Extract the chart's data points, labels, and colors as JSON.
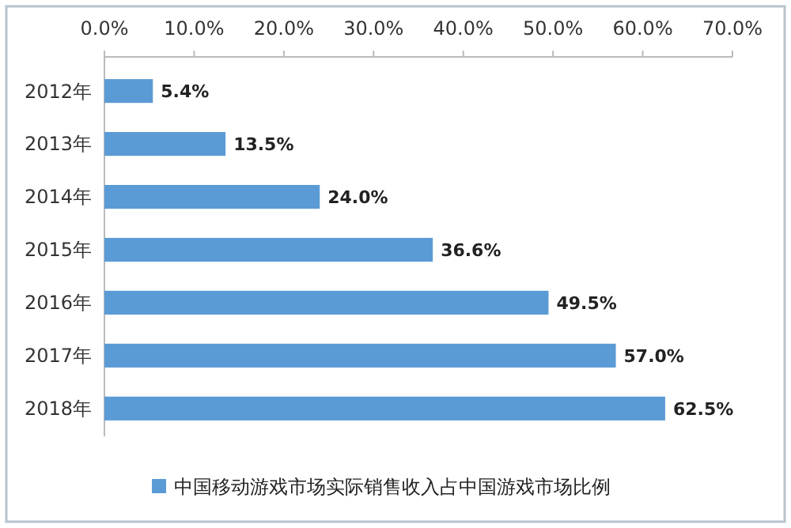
{
  "chart_data": {
    "type": "bar",
    "orientation": "horizontal",
    "categories": [
      "2012年",
      "2013年",
      "2014年",
      "2015年",
      "2016年",
      "2017年",
      "2018年"
    ],
    "series": [
      {
        "name": "中国移动游戏市场实际销售收入占中国游戏市场比例",
        "color": "#5b9bd5",
        "values": [
          5.4,
          13.5,
          24.0,
          36.6,
          49.5,
          57.0,
          62.5
        ]
      }
    ],
    "value_labels": [
      "5.4%",
      "13.5%",
      "24.0%",
      "36.6%",
      "49.5%",
      "57.0%",
      "62.5%"
    ],
    "xlim": [
      0,
      70
    ],
    "xticks": [
      {
        "value": 0,
        "label": "0.0%"
      },
      {
        "value": 10,
        "label": "10.0%"
      },
      {
        "value": 20,
        "label": "20.0%"
      },
      {
        "value": 30,
        "label": "30.0%"
      },
      {
        "value": 40,
        "label": "40.0%"
      },
      {
        "value": 50,
        "label": "50.0%"
      },
      {
        "value": 60,
        "label": "60.0%"
      },
      {
        "value": 70,
        "label": "70.0%"
      }
    ],
    "grid": false,
    "legend": "bottom"
  }
}
